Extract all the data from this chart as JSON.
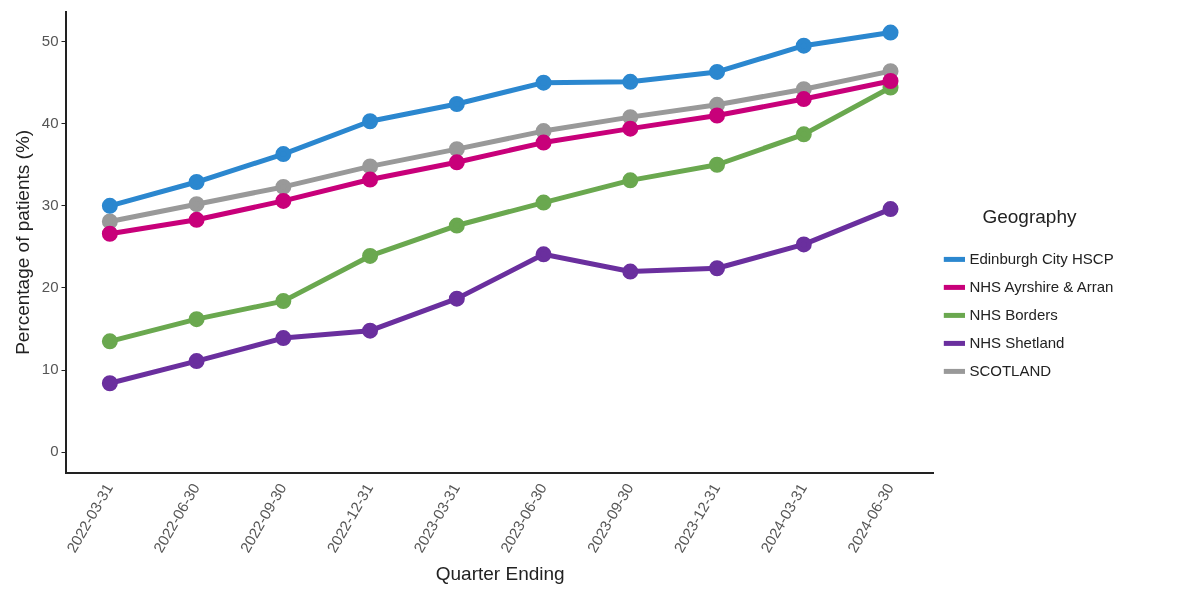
{
  "chart_data": {
    "type": "line",
    "xlabel": "Quarter Ending",
    "ylabel": "Percentage of patients (%)",
    "legend_title": "Geography",
    "legend": "right",
    "grid": false,
    "marker": "circle",
    "line_style": "solid",
    "categories": [
      "2022-03-31",
      "2022-06-30",
      "2022-09-30",
      "2022-12-31",
      "2023-03-31",
      "2023-06-30",
      "2023-09-30",
      "2023-12-31",
      "2024-03-31",
      "2024-06-30"
    ],
    "ylim": [
      -2.5,
      53.6
    ],
    "yticks": [
      0,
      10,
      20,
      30,
      40,
      50
    ],
    "series": [
      {
        "name": "Edinburgh City HSCP",
        "color": "#2b87cf",
        "values": [
          30.0,
          32.9,
          36.3,
          40.3,
          42.4,
          45.0,
          45.1,
          46.3,
          49.5,
          51.1
        ]
      },
      {
        "name": "NHS Ayrshire & Arran",
        "color": "#c8007a",
        "values": [
          26.6,
          28.3,
          30.6,
          33.2,
          35.3,
          37.7,
          39.4,
          41.0,
          43.0,
          45.2
        ]
      },
      {
        "name": "NHS Borders",
        "color": "#6aa84f",
        "values": [
          13.5,
          16.2,
          18.4,
          23.9,
          27.6,
          30.4,
          33.1,
          35.0,
          38.7,
          44.4
        ]
      },
      {
        "name": "NHS Shetland",
        "color": "#6a2f9e",
        "values": [
          8.4,
          11.1,
          13.9,
          14.8,
          18.7,
          24.1,
          22.0,
          22.4,
          25.3,
          29.6
        ]
      },
      {
        "name": "SCOTLAND",
        "color": "#999999",
        "values": [
          28.1,
          30.2,
          32.3,
          34.8,
          36.9,
          39.1,
          40.8,
          42.3,
          44.2,
          46.4
        ]
      }
    ]
  }
}
